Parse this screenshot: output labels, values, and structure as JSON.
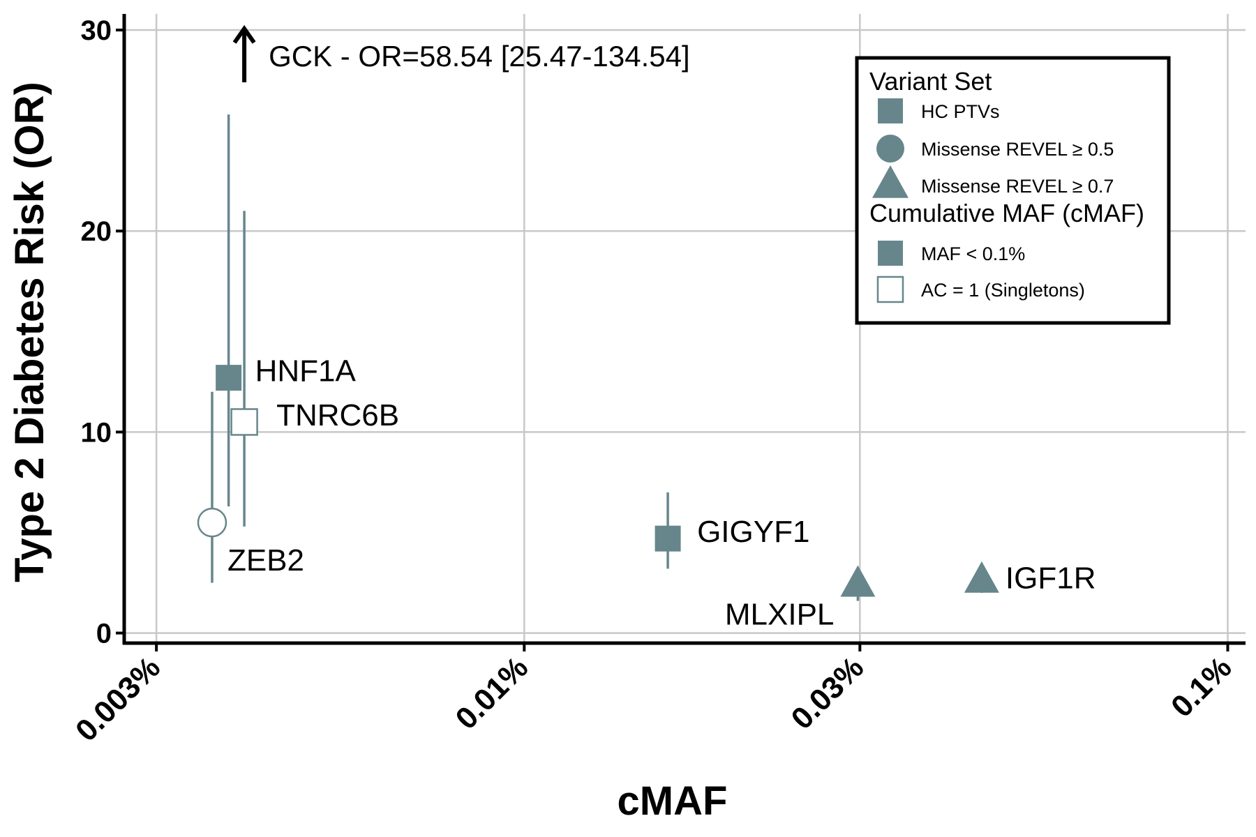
{
  "chart_data": {
    "type": "scatter",
    "xlabel": "cMAF",
    "ylabel": "Type 2 Diabetes Risk (OR)",
    "x_scale": "log",
    "xlim": [
      0.0027,
      0.106
    ],
    "ylim": [
      -0.5,
      30.8
    ],
    "x_ticks": [
      {
        "value": 0.003,
        "label": "0.003%"
      },
      {
        "value": 0.01,
        "label": "0.01%"
      },
      {
        "value": 0.03,
        "label": "0.03%"
      },
      {
        "value": 0.1,
        "label": "0.1%"
      }
    ],
    "y_ticks": [
      {
        "value": 0,
        "label": "0"
      },
      {
        "value": 10,
        "label": "10"
      },
      {
        "value": 20,
        "label": "20"
      },
      {
        "value": 30,
        "label": "30"
      }
    ],
    "grid": true,
    "color": "#66868c",
    "points": [
      {
        "label": "HNF1A",
        "x": 0.0038,
        "or": 12.7,
        "lo": 6.3,
        "hi": 25.8,
        "shape": "square",
        "filled": true
      },
      {
        "label": "TNRC6B",
        "x": 0.004,
        "or": 10.5,
        "lo": 5.3,
        "hi": 21.0,
        "shape": "square",
        "filled": false
      },
      {
        "label": "ZEB2",
        "x": 0.0036,
        "or": 5.5,
        "lo": 2.5,
        "hi": 12.0,
        "shape": "circle",
        "filled": false
      },
      {
        "label": "GIGYF1",
        "x": 0.016,
        "or": 4.7,
        "lo": 3.2,
        "hi": 7.0,
        "shape": "square",
        "filled": true
      },
      {
        "label": "MLXIPL",
        "x": 0.0298,
        "or": 2.4,
        "lo": 1.6,
        "hi": 3.0,
        "shape": "triangle",
        "filled": true
      },
      {
        "label": "IGF1R",
        "x": 0.0447,
        "or": 2.6,
        "lo": 2.0,
        "hi": 3.1,
        "shape": "triangle",
        "filled": true
      }
    ],
    "annotation": {
      "text": "GCK - OR=58.54 [25.47-134.54]",
      "x": 0.004,
      "y": 30
    }
  },
  "legend": {
    "title1": "Variant Set",
    "items1": [
      {
        "shape": "square",
        "filled": true,
        "label": "HC PTVs"
      },
      {
        "shape": "circle",
        "filled": true,
        "label": "Missense REVEL ≥ 0.5"
      },
      {
        "shape": "triangle",
        "filled": true,
        "label": "Missense REVEL ≥ 0.7"
      }
    ],
    "title2": "Cumulative MAF (cMAF)",
    "items2": [
      {
        "shape": "square",
        "filled": true,
        "label": "MAF < 0.1%"
      },
      {
        "shape": "square",
        "filled": false,
        "label": "AC = 1 (Singletons)"
      }
    ]
  }
}
